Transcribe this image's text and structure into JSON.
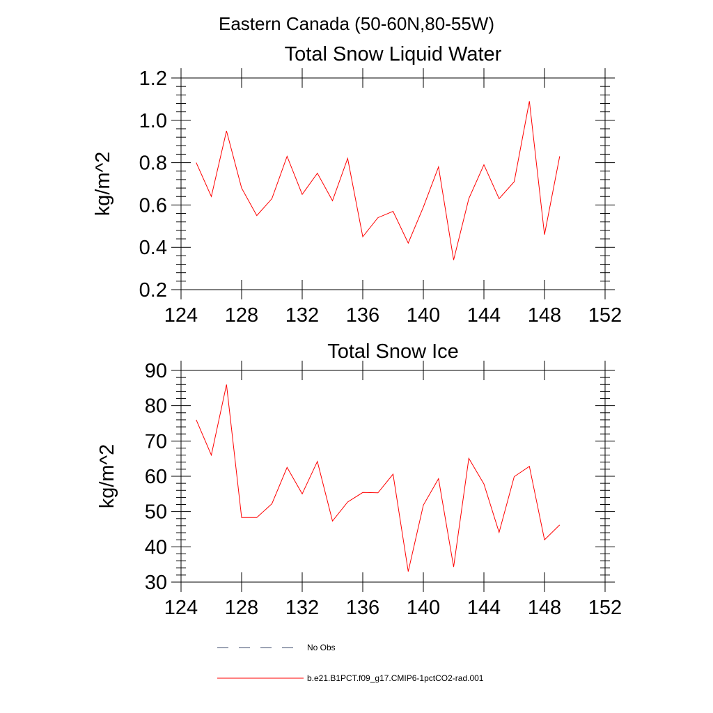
{
  "figure": {
    "title": "Eastern Canada (50-60N,80-55W)"
  },
  "colors": {
    "model_line": "#ff0000",
    "obs_line": "#3b4a6b",
    "axes": "#000000"
  },
  "chart_data": [
    {
      "type": "line",
      "title": "Total Snow Liquid Water",
      "xlabel": "",
      "ylabel": "kg/m^2",
      "xlim": [
        124,
        152
      ],
      "ylim": [
        0.2,
        1.2
      ],
      "xticks": [
        124,
        128,
        132,
        136,
        140,
        144,
        148,
        152
      ],
      "yticks": [
        0.2,
        0.4,
        0.6,
        0.8,
        1.0,
        1.2
      ],
      "ytick_labels": [
        "0.2",
        "0.4",
        "0.6",
        "0.8",
        "1.0",
        "1.2"
      ],
      "series": [
        {
          "name": "b.e21.B1PCT.f09_g17.CMIP6-1pctCO2-rad.001",
          "x": [
            125,
            126,
            127,
            128,
            129,
            130,
            131,
            132,
            133,
            134,
            135,
            136,
            137,
            138,
            139,
            140,
            141,
            142,
            143,
            144,
            145,
            146,
            147,
            148,
            149
          ],
          "y": [
            0.8,
            0.64,
            0.95,
            0.68,
            0.55,
            0.63,
            0.83,
            0.65,
            0.75,
            0.62,
            0.82,
            0.45,
            0.54,
            0.57,
            0.42,
            0.59,
            0.78,
            0.34,
            0.63,
            0.79,
            0.63,
            0.71,
            1.09,
            0.46,
            0.83
          ]
        }
      ]
    },
    {
      "type": "line",
      "title": "Total Snow Ice",
      "xlabel": "",
      "ylabel": "kg/m^2",
      "xlim": [
        124,
        152
      ],
      "ylim": [
        30,
        90
      ],
      "xticks": [
        124,
        128,
        132,
        136,
        140,
        144,
        148,
        152
      ],
      "yticks": [
        30,
        40,
        50,
        60,
        70,
        80,
        90
      ],
      "ytick_labels": [
        "30",
        "40",
        "50",
        "60",
        "70",
        "80",
        "90"
      ],
      "series": [
        {
          "name": "b.e21.B1PCT.f09_g17.CMIP6-1pctCO2-rad.001",
          "x": [
            125,
            126,
            127,
            128,
            129,
            130,
            131,
            132,
            133,
            134,
            135,
            136,
            137,
            138,
            139,
            140,
            141,
            142,
            143,
            144,
            145,
            146,
            147,
            148,
            149
          ],
          "y": [
            76,
            66,
            86,
            48.3,
            48.3,
            52.2,
            62.5,
            55,
            64.2,
            47.3,
            52.7,
            55.4,
            55.3,
            60.6,
            33,
            51.8,
            59.3,
            34.3,
            65.1,
            57.8,
            44.1,
            59.9,
            62.8,
            42,
            46.2
          ]
        }
      ]
    }
  ],
  "legend": {
    "items": [
      {
        "label": "No Obs",
        "style": "dashed"
      },
      {
        "label": "b.e21.B1PCT.f09_g17.CMIP6-1pctCO2-rad.001",
        "style": "solid"
      }
    ]
  }
}
